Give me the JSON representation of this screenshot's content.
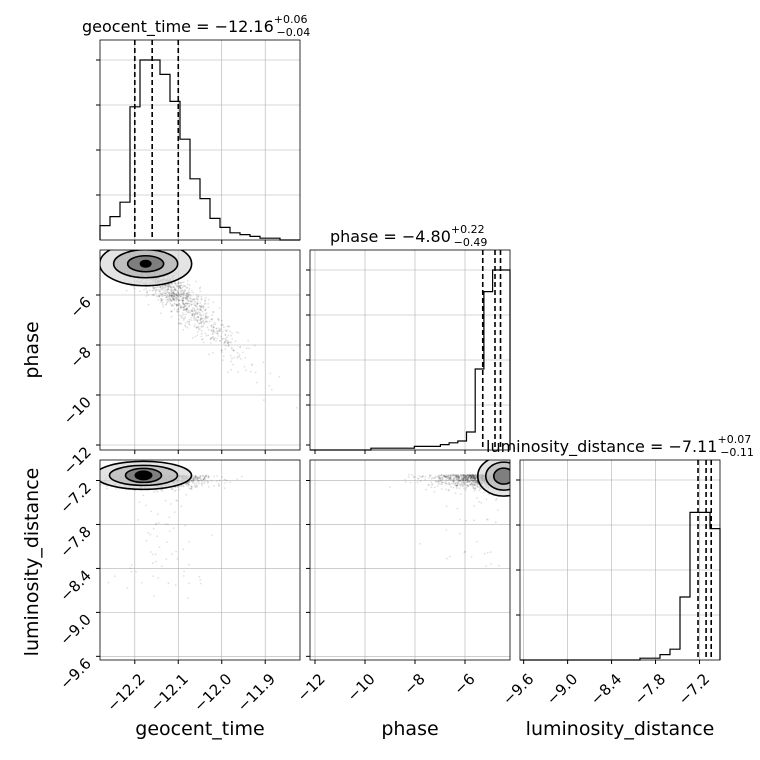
{
  "chart_data": {
    "type": "corner",
    "parameters": [
      {
        "name": "geocent_time",
        "title": {
          "prefix": "geocent_time = −12.16",
          "upper": "+0.06",
          "lower": "−0.04"
        },
        "quantiles": [
          -12.2,
          -12.16,
          -12.1
        ],
        "range": [
          -12.28,
          -11.82
        ],
        "ticks": [
          "−12.2",
          "−12.1",
          "−12.0",
          "−11.9"
        ],
        "tick_values": [
          -12.2,
          -12.1,
          -12.0,
          -11.9
        ],
        "hist": [
          0.08,
          0.13,
          0.21,
          0.74,
          1.0,
          1.0,
          0.92,
          0.77,
          0.56,
          0.34,
          0.23,
          0.12,
          0.07,
          0.04,
          0.03,
          0.02,
          0.01,
          0.01,
          0.0,
          0.0
        ]
      },
      {
        "name": "phase",
        "title": {
          "prefix": "phase = −4.80",
          "upper": "+0.22",
          "lower": "−0.49"
        },
        "quantiles": [
          -5.29,
          -4.8,
          -4.58
        ],
        "range": [
          -12.2,
          -4.2
        ],
        "ticks": [
          "−12",
          "−10",
          "−8",
          "−6"
        ],
        "tick_values": [
          -12,
          -10,
          -8,
          -6
        ],
        "hist": [
          0.0,
          0.0,
          0.0,
          0.0,
          0.0,
          0.0,
          0.0,
          0.01,
          0.01,
          0.01,
          0.01,
          0.01,
          0.02,
          0.02,
          0.02,
          0.03,
          0.04,
          0.05,
          0.1,
          0.45,
          0.88,
          1.0,
          1.0
        ]
      },
      {
        "name": "luminosity_distance",
        "title": {
          "prefix": "luminosity_distance = −7.11",
          "upper": "+0.07",
          "lower": "−0.11"
        },
        "quantiles": [
          -7.22,
          -7.11,
          -7.04
        ],
        "range": [
          -9.65,
          -6.92
        ],
        "ticks": [
          "−9.6",
          "−9.0",
          "−8.4",
          "−7.8",
          "−7.2"
        ],
        "tick_values": [
          -9.6,
          -9.0,
          -8.4,
          -7.8,
          -7.2
        ],
        "hist": [
          0.0,
          0.0,
          0.0,
          0.0,
          0.0,
          0.0,
          0.0,
          0.0,
          0.0,
          0.0,
          0.0,
          0.0,
          0.01,
          0.01,
          0.03,
          0.06,
          0.35,
          0.82,
          0.82,
          0.73
        ]
      }
    ],
    "pair_ticks": {
      "phase_y": [
        "−6",
        "−8",
        "−10",
        "−12"
      ],
      "phase_y_values": [
        -6,
        -8,
        -10,
        -12
      ],
      "lumdist_y": [
        "−7.2",
        "−7.8",
        "−8.4",
        "−9.0",
        "−9.6"
      ],
      "lumdist_y_values": [
        -7.2,
        -7.8,
        -8.4,
        -9.0,
        -9.6
      ]
    },
    "colors": {
      "line": "#000000",
      "grid": "#b0b0b0",
      "scatter": "#000000"
    },
    "grid": true
  }
}
